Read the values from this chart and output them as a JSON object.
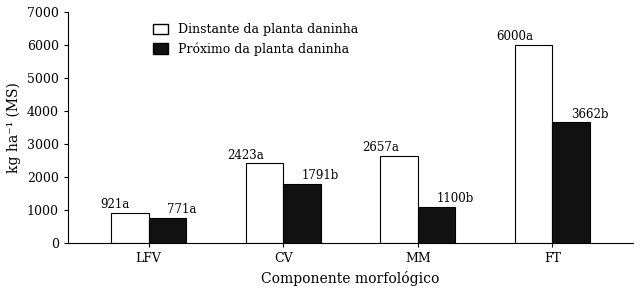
{
  "categories": [
    "LFV",
    "CV",
    "MM",
    "FT"
  ],
  "distant_values": [
    921,
    2423,
    2657,
    6000
  ],
  "nearby_values": [
    771,
    1791,
    1100,
    3662
  ],
  "distant_labels": [
    "921a",
    "2423a",
    "2657a",
    "6000a"
  ],
  "nearby_labels": [
    "771a",
    "1791b",
    "1100b",
    "3662b"
  ],
  "distant_color": "#ffffff",
  "nearby_color": "#111111",
  "bar_edge_color": "#000000",
  "legend_distant": "Dinstante da planta daninha",
  "legend_nearby": "Próximo da planta daninha",
  "ylabel": "kg ha⁻¹ (MS)",
  "xlabel": "Componente morfológico",
  "ylim": [
    0,
    7000
  ],
  "yticks": [
    0,
    1000,
    2000,
    3000,
    4000,
    5000,
    6000,
    7000
  ],
  "bar_width": 0.28,
  "annotation_fontsize": 8.5,
  "label_fontsize": 10,
  "tick_fontsize": 9,
  "legend_fontsize": 9
}
